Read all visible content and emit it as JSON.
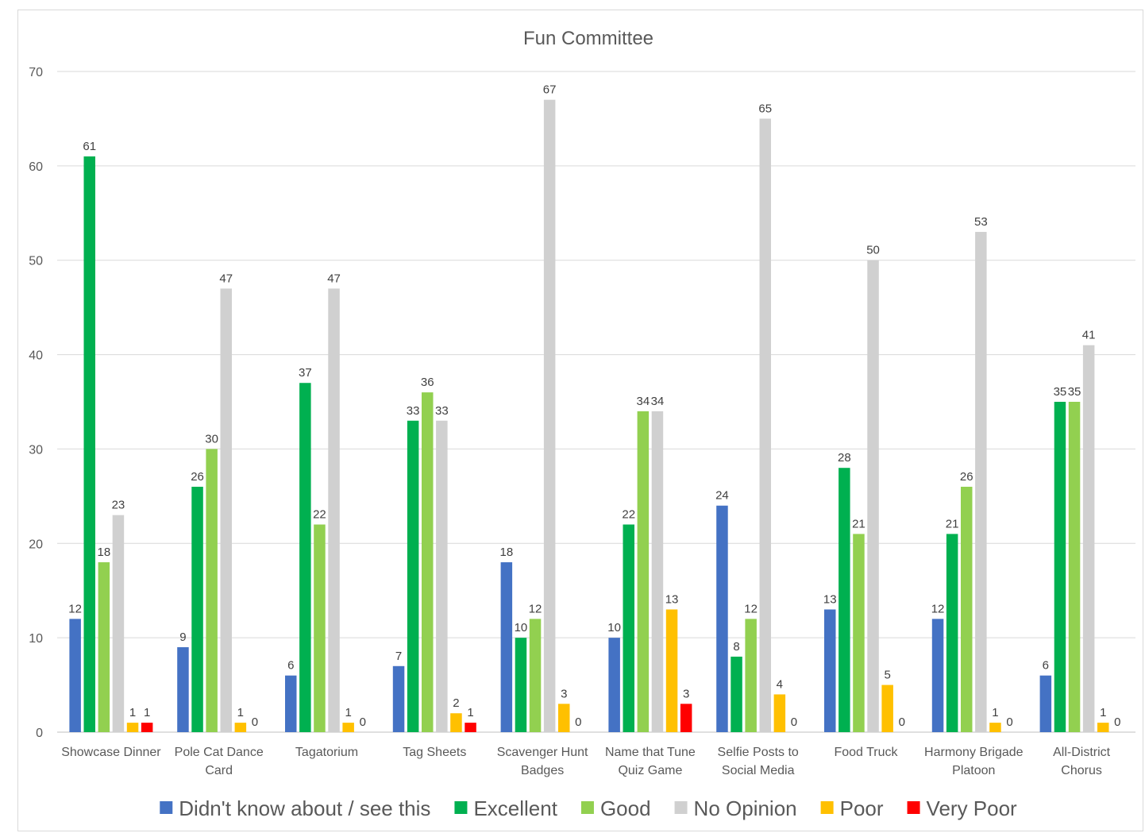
{
  "chart_data": {
    "type": "bar",
    "title": "Fun Committee",
    "xlabel": "",
    "ylabel": "",
    "ylim": [
      0,
      70
    ],
    "yticks": [
      0,
      10,
      20,
      30,
      40,
      50,
      60,
      70
    ],
    "grid": true,
    "legend_position": "bottom",
    "categories": [
      [
        "Showcase Dinner"
      ],
      [
        "Pole Cat Dance",
        "Card"
      ],
      [
        "Tagatorium"
      ],
      [
        "Tag Sheets"
      ],
      [
        "Scavenger Hunt",
        "Badges"
      ],
      [
        "Name that Tune",
        "Quiz Game"
      ],
      [
        "Selfie Posts to",
        "Social Media"
      ],
      [
        "Food Truck"
      ],
      [
        "Harmony Brigade",
        "Platoon"
      ],
      [
        "All-District",
        "Chorus"
      ]
    ],
    "series": [
      {
        "name": "Didn't know about / see this",
        "color": "#4472c4",
        "values": [
          12,
          9,
          6,
          7,
          18,
          10,
          24,
          13,
          12,
          6
        ]
      },
      {
        "name": "Excellent",
        "color": "#00b050",
        "values": [
          61,
          26,
          37,
          33,
          10,
          22,
          8,
          28,
          21,
          35
        ]
      },
      {
        "name": "Good",
        "color": "#92d050",
        "values": [
          18,
          30,
          22,
          36,
          12,
          34,
          12,
          21,
          26,
          35
        ]
      },
      {
        "name": "No Opinion",
        "color": "#d0d0d0",
        "values": [
          23,
          47,
          47,
          33,
          67,
          34,
          65,
          50,
          53,
          41
        ]
      },
      {
        "name": "Poor",
        "color": "#ffc000",
        "values": [
          1,
          1,
          1,
          2,
          3,
          13,
          4,
          5,
          1,
          1
        ]
      },
      {
        "name": "Very Poor",
        "color": "#ff0000",
        "values": [
          1,
          0,
          0,
          1,
          0,
          3,
          0,
          0,
          0,
          0
        ]
      }
    ]
  }
}
